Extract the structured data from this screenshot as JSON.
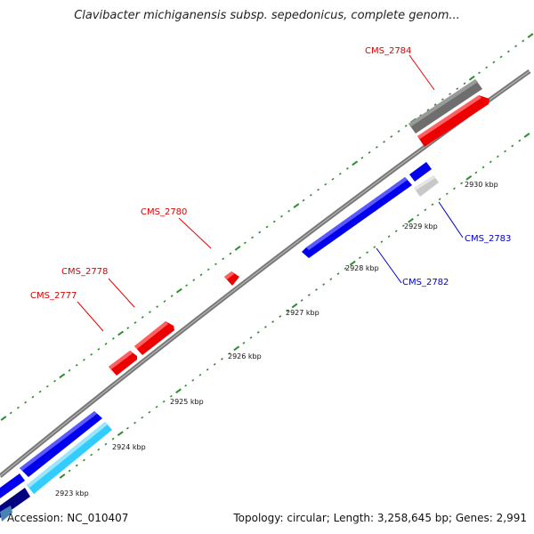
{
  "title": "Clavibacter michiganensis subsp. sepedonicus, complete genom...",
  "footer": {
    "accession": "Accession: NC_010407",
    "topology": "Topology: circular; Length: 3,258,645 bp; Genes: 2,991"
  },
  "colors": {
    "backbone": "#7a7a7a",
    "ticks": "#2e8b2e",
    "forward_gene": "#ff0000",
    "reverse_gene": "#0000ee",
    "cds_gray": "#707070",
    "light_gray": "#c8c8c8",
    "cyan": "#33ccff",
    "navy": "#000080",
    "label_forward": "#dd0000",
    "label_reverse": "#0000cc"
  },
  "scale_labels": [
    {
      "text": "2923 kbp"
    },
    {
      "text": "2924 kbp"
    },
    {
      "text": "2925 kbp"
    },
    {
      "text": "2926 kbp"
    },
    {
      "text": "2927 kbp"
    },
    {
      "text": "2928 kbp"
    },
    {
      "text": "2929 kbp"
    },
    {
      "text": "2930 kbp"
    }
  ],
  "gene_labels": [
    {
      "text": "CMS_2784",
      "strand": "forward"
    },
    {
      "text": "CMS_2780",
      "strand": "forward"
    },
    {
      "text": "CMS_2778",
      "strand": "forward"
    },
    {
      "text": "CMS_2777",
      "strand": "forward"
    },
    {
      "text": "CMS_2783",
      "strand": "reverse"
    },
    {
      "text": "CMS_2782",
      "strand": "reverse"
    }
  ]
}
